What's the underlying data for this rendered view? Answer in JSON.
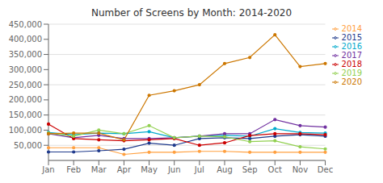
{
  "chart_data": {
    "type": "line",
    "title": "Number of Screens by Month: 2014-2020",
    "categories": [
      "Jan",
      "Feb",
      "Mar",
      "Apr",
      "May",
      "Jun",
      "Jul",
      "Aug",
      "Sep",
      "Oct",
      "Nov",
      "Dec"
    ],
    "series": [
      {
        "name": "2014",
        "color": "#FFA040",
        "values": [
          42000,
          42000,
          42000,
          20000,
          27000,
          27000,
          30000,
          30000,
          27000,
          27000,
          27000,
          27000
        ]
      },
      {
        "name": "2015",
        "color": "#1F3A8C",
        "values": [
          28000,
          28000,
          32000,
          37000,
          57000,
          50000,
          72000,
          75000,
          72000,
          80000,
          85000,
          80000
        ]
      },
      {
        "name": "2016",
        "color": "#00AACC",
        "values": [
          92000,
          85000,
          90000,
          88000,
          95000,
          75000,
          80000,
          83000,
          80000,
          105000,
          92000,
          90000
        ]
      },
      {
        "name": "2017",
        "color": "#7030A0",
        "values": [
          88000,
          75000,
          83000,
          72000,
          72000,
          75000,
          80000,
          88000,
          88000,
          135000,
          115000,
          110000
        ]
      },
      {
        "name": "2018",
        "color": "#CC0000",
        "values": [
          120000,
          72000,
          68000,
          65000,
          68000,
          72000,
          50000,
          58000,
          82000,
          88000,
          88000,
          85000
        ]
      },
      {
        "name": "2019",
        "color": "#92D050",
        "values": [
          90000,
          80000,
          100000,
          88000,
          115000,
          75000,
          80000,
          78000,
          62000,
          65000,
          45000,
          38000
        ]
      },
      {
        "name": "2020",
        "color": "#CC7700",
        "values": [
          88000,
          90000,
          90000,
          68000,
          215000,
          230000,
          250000,
          320000,
          340000,
          415000,
          310000,
          320000
        ]
      }
    ],
    "ylim": [
      0,
      450000
    ],
    "yticks": [
      {
        "value": 50000,
        "label": "50,000"
      },
      {
        "value": 100000,
        "label": "100,000"
      },
      {
        "value": 150000,
        "label": "150,000"
      },
      {
        "value": 200000,
        "label": "200,000"
      },
      {
        "value": 250000,
        "label": "250,000"
      },
      {
        "value": 300000,
        "label": "300,000"
      },
      {
        "value": 350000,
        "label": "350,000"
      },
      {
        "value": 400000,
        "label": "400,000"
      },
      {
        "value": 450000,
        "label": "450,000"
      }
    ],
    "grid": true,
    "legend": "right",
    "marker": "circle"
  }
}
